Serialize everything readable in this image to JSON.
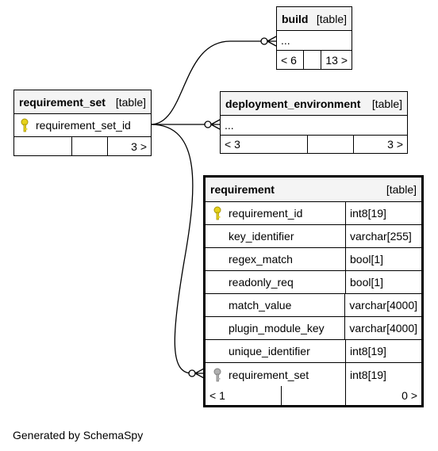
{
  "tables": {
    "build": {
      "name": "build",
      "type": "[table]",
      "rows": [
        "..."
      ],
      "footer": {
        "left": "< 6",
        "right": "13 >"
      }
    },
    "requirement_set": {
      "name": "requirement_set",
      "type": "[table]",
      "columns": [
        {
          "name": "requirement_set_id",
          "key": "primary"
        }
      ],
      "footer": {
        "right": "3 >"
      }
    },
    "deployment_environment": {
      "name": "deployment_environment",
      "type": "[table]",
      "rows": [
        "..."
      ],
      "footer": {
        "left": "< 3",
        "right": "3 >"
      }
    },
    "requirement": {
      "name": "requirement",
      "type": "[table]",
      "columns": [
        {
          "name": "requirement_id",
          "type": "int8[19]",
          "key": "primary"
        },
        {
          "name": "key_identifier",
          "type": "varchar[255]",
          "key": ""
        },
        {
          "name": "regex_match",
          "type": "bool[1]",
          "key": ""
        },
        {
          "name": "readonly_req",
          "type": "bool[1]",
          "key": ""
        },
        {
          "name": "match_value",
          "type": "varchar[4000]",
          "key": ""
        },
        {
          "name": "plugin_module_key",
          "type": "varchar[4000]",
          "key": ""
        },
        {
          "name": "unique_identifier",
          "type": "int8[19]",
          "key": ""
        },
        {
          "name": "requirement_set",
          "type": "int8[19]",
          "key": "foreign"
        }
      ],
      "footer": {
        "left": "< 1",
        "right": "0 >"
      }
    }
  },
  "colors": {
    "primary_key": "#e6d21a",
    "foreign_key": "#b0b0b0",
    "header_bg": "#f4f4f4"
  },
  "footer_text": "Generated by SchemaSpy"
}
